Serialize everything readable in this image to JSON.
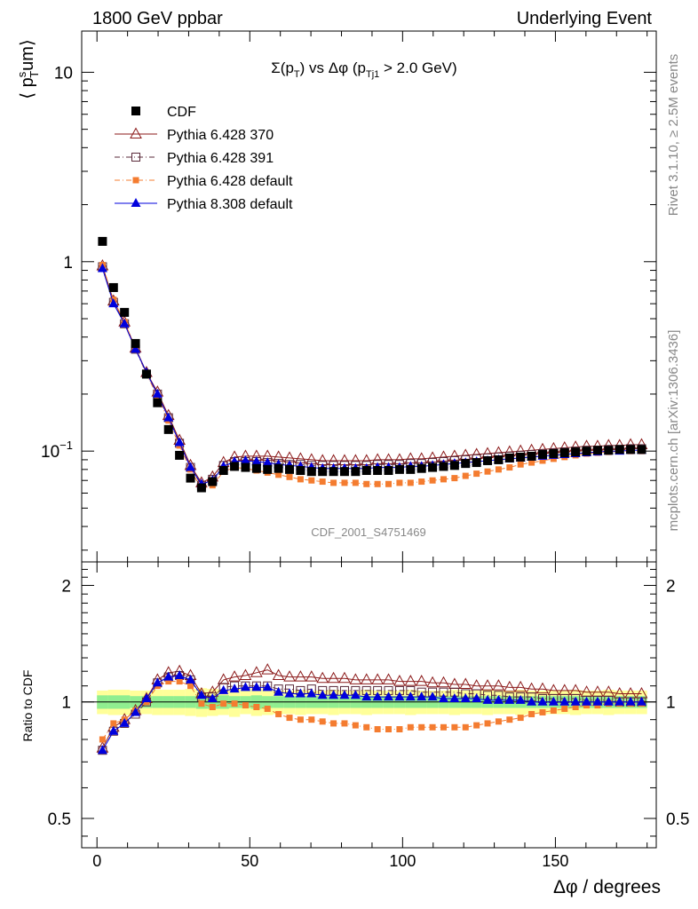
{
  "header": {
    "left": "1800 GeV ppbar",
    "right": "Underlying Event"
  },
  "side": {
    "rivet": "Rivet 3.1.10, ≥ 2.5M events",
    "mcplots": "mcplots.cern.ch [arXiv:1306.3436]"
  },
  "watermark": "CDF_2001_S4751469",
  "chart_data": [
    {
      "type": "scatter",
      "panel": "main",
      "title": "Σ(p_T) vs Δφ (p_Tj1 > 2.0 GeV)",
      "ylabel": "⟨ p_T^sum ⟩",
      "xlim": [
        -5,
        183
      ],
      "ylim": [
        0.026,
        16.5
      ],
      "yscale": "log",
      "yticks": [
        {
          "v": 0.1,
          "base": "10",
          "exp": "−1"
        },
        {
          "v": 1,
          "base": "1",
          "exp": ""
        },
        {
          "v": 10,
          "base": "10",
          "exp": ""
        }
      ],
      "legend_position": "top-left",
      "x": [
        1.8,
        5.4,
        9.0,
        12.6,
        16.2,
        19.8,
        23.4,
        27.0,
        30.6,
        34.2,
        37.8,
        41.4,
        45.0,
        48.6,
        52.2,
        55.8,
        59.4,
        63.0,
        66.6,
        70.2,
        73.8,
        77.4,
        81.0,
        84.6,
        88.2,
        91.8,
        95.4,
        99.0,
        102.6,
        106.2,
        109.8,
        113.4,
        117.0,
        120.6,
        124.2,
        127.8,
        131.4,
        135.0,
        138.6,
        142.2,
        145.8,
        149.4,
        153.0,
        156.6,
        160.2,
        163.8,
        167.4,
        171.0,
        174.6,
        178.2
      ],
      "series": [
        {
          "name": "CDF",
          "color": "#000000",
          "marker": "square",
          "line": false,
          "values": [
            1.28,
            0.73,
            0.54,
            0.37,
            0.255,
            0.18,
            0.13,
            0.095,
            0.072,
            0.064,
            0.069,
            0.079,
            0.083,
            0.082,
            0.081,
            0.08,
            0.081,
            0.08,
            0.079,
            0.078,
            0.078,
            0.078,
            0.078,
            0.078,
            0.079,
            0.079,
            0.079,
            0.08,
            0.08,
            0.081,
            0.082,
            0.083,
            0.084,
            0.086,
            0.087,
            0.089,
            0.09,
            0.092,
            0.093,
            0.094,
            0.096,
            0.097,
            0.098,
            0.099,
            0.1,
            0.101,
            0.101,
            0.102,
            0.102,
            0.102
          ]
        },
        {
          "name": "Pythia 6.428 370",
          "color": "#8b1a1a",
          "marker": "triangle-open",
          "line": "solid",
          "values": [
            0.95,
            0.62,
            0.48,
            0.35,
            0.26,
            0.205,
            0.154,
            0.114,
            0.084,
            0.068,
            0.073,
            0.087,
            0.093,
            0.094,
            0.094,
            0.094,
            0.093,
            0.092,
            0.091,
            0.09,
            0.089,
            0.089,
            0.089,
            0.089,
            0.089,
            0.09,
            0.09,
            0.09,
            0.091,
            0.091,
            0.092,
            0.093,
            0.094,
            0.095,
            0.096,
            0.097,
            0.098,
            0.099,
            0.1,
            0.101,
            0.102,
            0.103,
            0.104,
            0.105,
            0.106,
            0.106,
            0.107,
            0.107,
            0.108,
            0.108
          ]
        },
        {
          "name": "Pythia 6.428 391",
          "color": "#5a2a3a",
          "marker": "square-open",
          "line": "dashdot",
          "values": [
            0.94,
            0.61,
            0.47,
            0.345,
            0.255,
            0.2,
            0.15,
            0.11,
            0.082,
            0.066,
            0.071,
            0.084,
            0.088,
            0.088,
            0.088,
            0.087,
            0.086,
            0.085,
            0.085,
            0.084,
            0.084,
            0.084,
            0.084,
            0.084,
            0.084,
            0.085,
            0.085,
            0.085,
            0.086,
            0.086,
            0.087,
            0.088,
            0.089,
            0.09,
            0.091,
            0.092,
            0.093,
            0.094,
            0.095,
            0.096,
            0.097,
            0.098,
            0.099,
            0.1,
            0.101,
            0.101,
            0.102,
            0.102,
            0.103,
            0.103
          ]
        },
        {
          "name": "Pythia 6.428 default",
          "color": "#f47c30",
          "marker": "square-small",
          "line": "dashdot",
          "values": [
            0.96,
            0.63,
            0.48,
            0.35,
            0.255,
            0.195,
            0.145,
            0.107,
            0.08,
            0.063,
            0.066,
            0.078,
            0.082,
            0.081,
            0.079,
            0.077,
            0.075,
            0.073,
            0.071,
            0.07,
            0.069,
            0.068,
            0.068,
            0.068,
            0.067,
            0.067,
            0.067,
            0.068,
            0.068,
            0.069,
            0.07,
            0.071,
            0.072,
            0.074,
            0.076,
            0.078,
            0.08,
            0.082,
            0.085,
            0.087,
            0.089,
            0.091,
            0.093,
            0.095,
            0.097,
            0.098,
            0.099,
            0.1,
            0.1,
            0.1
          ]
        },
        {
          "name": "Pythia 8.308 default",
          "color": "#0000dd",
          "marker": "triangle",
          "line": "solid",
          "values": [
            0.92,
            0.6,
            0.47,
            0.345,
            0.26,
            0.2,
            0.15,
            0.111,
            0.082,
            0.067,
            0.07,
            0.083,
            0.088,
            0.089,
            0.088,
            0.087,
            0.085,
            0.084,
            0.083,
            0.082,
            0.081,
            0.081,
            0.081,
            0.081,
            0.081,
            0.082,
            0.082,
            0.082,
            0.083,
            0.083,
            0.084,
            0.085,
            0.086,
            0.087,
            0.088,
            0.089,
            0.09,
            0.091,
            0.092,
            0.093,
            0.094,
            0.095,
            0.096,
            0.097,
            0.098,
            0.099,
            0.1,
            0.1,
            0.101,
            0.101
          ]
        }
      ]
    },
    {
      "type": "line",
      "panel": "ratio",
      "ylabel": "Ratio to CDF",
      "xlabel": "Δφ / degrees",
      "xlim": [
        -5,
        183
      ],
      "ylim": [
        0.42,
        2.3
      ],
      "yscale": "log",
      "yticks": [
        0.5,
        1,
        2
      ],
      "xticks": [
        0,
        50,
        100,
        150
      ],
      "bands": {
        "stat_color": "#90ee90",
        "total_color": "#ffff99",
        "stat_half_width": [
          0.04,
          0.04,
          0.04,
          0.035,
          0.035,
          0.035,
          0.035,
          0.035,
          0.035,
          0.04,
          0.04,
          0.04,
          0.035,
          0.035,
          0.04,
          0.035,
          0.035,
          0.035,
          0.035,
          0.035,
          0.035,
          0.035,
          0.035,
          0.035,
          0.035,
          0.035,
          0.035,
          0.035,
          0.035,
          0.035,
          0.035,
          0.035,
          0.035,
          0.035,
          0.035,
          0.035,
          0.035,
          0.035,
          0.035,
          0.035,
          0.035,
          0.035,
          0.035,
          0.035,
          0.035,
          0.035,
          0.035,
          0.035,
          0.035,
          0.035
        ],
        "total_half_width": [
          0.07,
          0.075,
          0.075,
          0.07,
          0.07,
          0.075,
          0.075,
          0.075,
          0.08,
          0.085,
          0.08,
          0.075,
          0.085,
          0.07,
          0.08,
          0.075,
          0.07,
          0.07,
          0.075,
          0.07,
          0.07,
          0.075,
          0.07,
          0.07,
          0.075,
          0.07,
          0.07,
          0.07,
          0.075,
          0.07,
          0.07,
          0.07,
          0.075,
          0.07,
          0.07,
          0.075,
          0.07,
          0.07,
          0.075,
          0.07,
          0.07,
          0.07,
          0.07,
          0.075,
          0.07,
          0.07,
          0.075,
          0.07,
          0.07,
          0.07
        ]
      },
      "reference": 1.0,
      "series": [
        {
          "name": "Pythia 6.428 370",
          "color": "#8b1a1a",
          "marker": "triangle-open",
          "line": "solid",
          "values": [
            0.76,
            0.86,
            0.9,
            0.95,
            1.02,
            1.14,
            1.19,
            1.2,
            1.17,
            1.05,
            1.06,
            1.14,
            1.16,
            1.17,
            1.19,
            1.21,
            1.17,
            1.16,
            1.16,
            1.16,
            1.15,
            1.15,
            1.15,
            1.14,
            1.14,
            1.14,
            1.14,
            1.13,
            1.13,
            1.13,
            1.12,
            1.12,
            1.11,
            1.11,
            1.1,
            1.1,
            1.1,
            1.09,
            1.09,
            1.08,
            1.08,
            1.07,
            1.07,
            1.07,
            1.06,
            1.06,
            1.06,
            1.05,
            1.05,
            1.05
          ]
        },
        {
          "name": "Pythia 6.428 391",
          "color": "#5a2a3a",
          "marker": "square-open",
          "line": "dashdot",
          "values": [
            0.75,
            0.84,
            0.88,
            0.93,
            1.0,
            1.12,
            1.16,
            1.17,
            1.14,
            1.03,
            1.03,
            1.09,
            1.1,
            1.1,
            1.1,
            1.1,
            1.08,
            1.08,
            1.07,
            1.08,
            1.07,
            1.07,
            1.07,
            1.07,
            1.07,
            1.07,
            1.07,
            1.07,
            1.07,
            1.06,
            1.06,
            1.06,
            1.06,
            1.05,
            1.05,
            1.04,
            1.04,
            1.03,
            1.03,
            1.03,
            1.02,
            1.02,
            1.02,
            1.02,
            1.01,
            1.01,
            1.01,
            1.0,
            1.0,
            1.0
          ]
        },
        {
          "name": "Pythia 6.428 default",
          "color": "#f47c30",
          "marker": "square-small",
          "line": "dashdot",
          "values": [
            0.8,
            0.88,
            0.9,
            0.95,
            1.0,
            1.1,
            1.13,
            1.13,
            1.1,
            0.99,
            0.97,
            0.99,
            0.99,
            0.98,
            0.97,
            0.96,
            0.93,
            0.91,
            0.9,
            0.9,
            0.89,
            0.88,
            0.88,
            0.87,
            0.86,
            0.85,
            0.85,
            0.85,
            0.86,
            0.86,
            0.86,
            0.86,
            0.86,
            0.86,
            0.87,
            0.88,
            0.89,
            0.9,
            0.91,
            0.93,
            0.94,
            0.95,
            0.96,
            0.97,
            0.98,
            0.98,
            0.99,
            0.99,
            0.99,
            0.99
          ]
        },
        {
          "name": "Pythia 8.308 default",
          "color": "#0000dd",
          "marker": "triangle",
          "line": "solid",
          "values": [
            0.75,
            0.84,
            0.88,
            0.94,
            1.02,
            1.12,
            1.16,
            1.17,
            1.14,
            1.04,
            1.02,
            1.07,
            1.08,
            1.09,
            1.09,
            1.09,
            1.06,
            1.05,
            1.05,
            1.05,
            1.04,
            1.04,
            1.04,
            1.04,
            1.03,
            1.03,
            1.03,
            1.03,
            1.03,
            1.03,
            1.03,
            1.02,
            1.02,
            1.02,
            1.02,
            1.01,
            1.01,
            1.01,
            1.01,
            1.0,
            1.0,
            1.0,
            1.0,
            1.0,
            1.0,
            1.0,
            1.0,
            1.0,
            1.0,
            1.0
          ]
        }
      ]
    }
  ]
}
